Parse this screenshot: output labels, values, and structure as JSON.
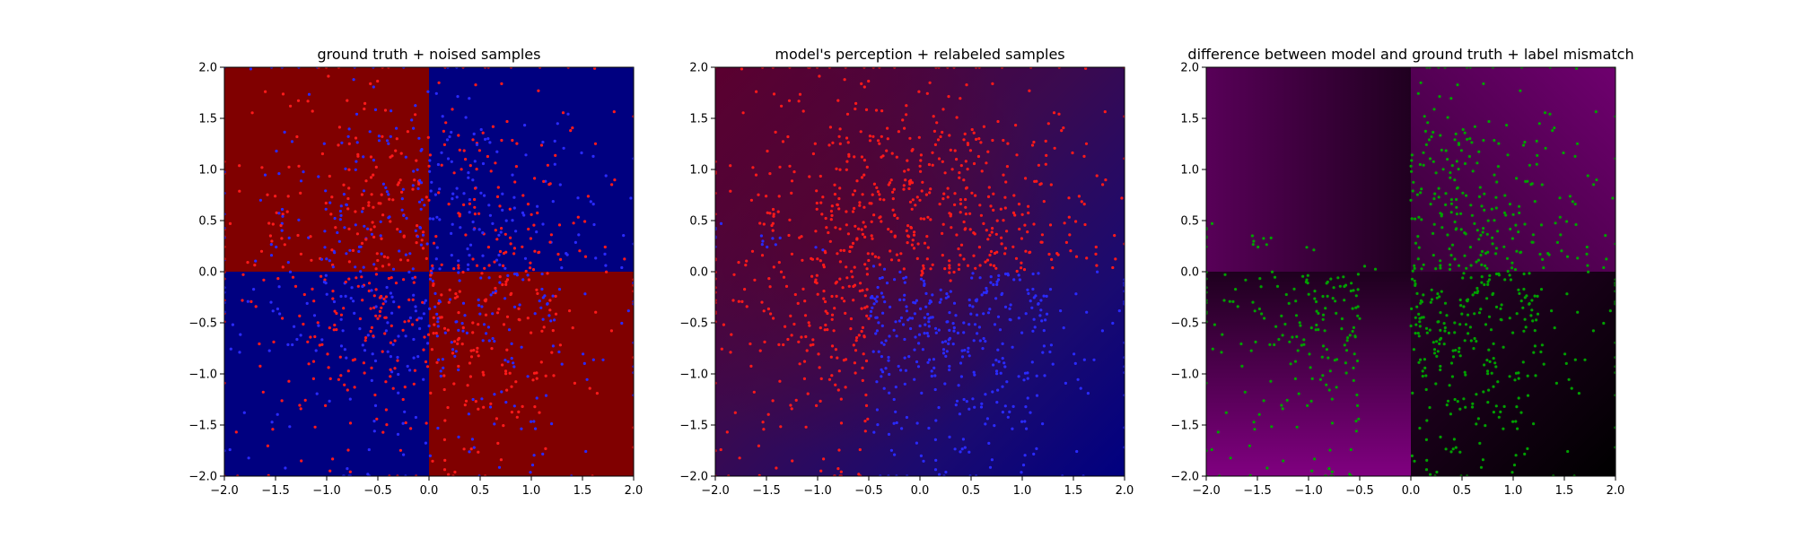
{
  "chart_data": [
    {
      "type": "heatmap",
      "title": "ground truth + noised samples",
      "xlim": [
        -2.0,
        2.0
      ],
      "ylim": [
        -2.0,
        2.0
      ],
      "xticks": [
        "−2.0",
        "−1.5",
        "−1.0",
        "−0.5",
        "0.0",
        "0.5",
        "1.0",
        "1.5",
        "2.0"
      ],
      "yticks": [
        "−2.0",
        "−1.5",
        "−1.0",
        "−0.5",
        "0.0",
        "0.5",
        "1.0",
        "1.5",
        "2.0"
      ],
      "background": "checkerboard quadrants: x<0,y>0 red; x>0,y>0 blue; x<0,y<0 blue; x>0,y<0 red",
      "background_colors": {
        "red": "#800000",
        "blue": "#000080"
      },
      "point_colors": {
        "label_red": "#ff1a1a",
        "label_blue": "#2a2aff"
      },
      "series": [
        {
          "color": "red",
          "description": "noisy samples labeled red, scattered over entire square"
        },
        {
          "color": "blue",
          "description": "noisy samples labeled blue, scattered over entire square"
        }
      ],
      "grid": false
    },
    {
      "type": "heatmap",
      "title": "model's perception + relabeled samples",
      "xlim": [
        -2.0,
        2.0
      ],
      "ylim": [
        -2.0,
        2.0
      ],
      "xticks": [
        "−2.0",
        "−1.5",
        "−1.0",
        "−0.5",
        "0.0",
        "0.5",
        "1.0",
        "1.5",
        "2.0"
      ],
      "yticks": [
        "−2.0",
        "−1.5",
        "−1.0",
        "−0.5",
        "0.0",
        "0.5",
        "1.0",
        "1.5",
        "2.0"
      ],
      "background": "smooth gradient: dark red toward upper-left, dark blue toward lower-right",
      "background_colors": {
        "red": "#5a0026",
        "mid": "#2a0a55",
        "blue": "#000080"
      },
      "point_colors": {
        "label_red": "#ff1a1a",
        "label_blue": "#2a2aff"
      },
      "series": [
        {
          "color": "red",
          "description": "samples relabeled red by model, upper/left region"
        },
        {
          "color": "blue",
          "description": "samples relabeled blue by model, lower-right region"
        }
      ],
      "grid": false
    },
    {
      "type": "heatmap",
      "title": "difference between model and ground truth + label mismatch",
      "xlim": [
        -2.0,
        2.0
      ],
      "ylim": [
        -2.0,
        2.0
      ],
      "xticks": [
        "−2.0",
        "−1.5",
        "−1.0",
        "−0.5",
        "0.0",
        "0.5",
        "1.0",
        "1.5",
        "2.0"
      ],
      "yticks": [
        "−2.0",
        "−1.5",
        "−1.0",
        "−0.5",
        "0.0",
        "0.5",
        "1.0",
        "1.5",
        "2.0"
      ],
      "background": "purple intensity: upper-left dark purple, upper-right purple, lower-left bright purple increasing downward, lower-right dark fading to black",
      "background_colors": {
        "purple": "#7a007a",
        "dark": "#000000"
      },
      "point_colors": {
        "mismatch": "#00a000"
      },
      "series": [
        {
          "color": "green",
          "description": "samples whose relabel mismatches ground truth"
        }
      ],
      "grid": false
    }
  ]
}
